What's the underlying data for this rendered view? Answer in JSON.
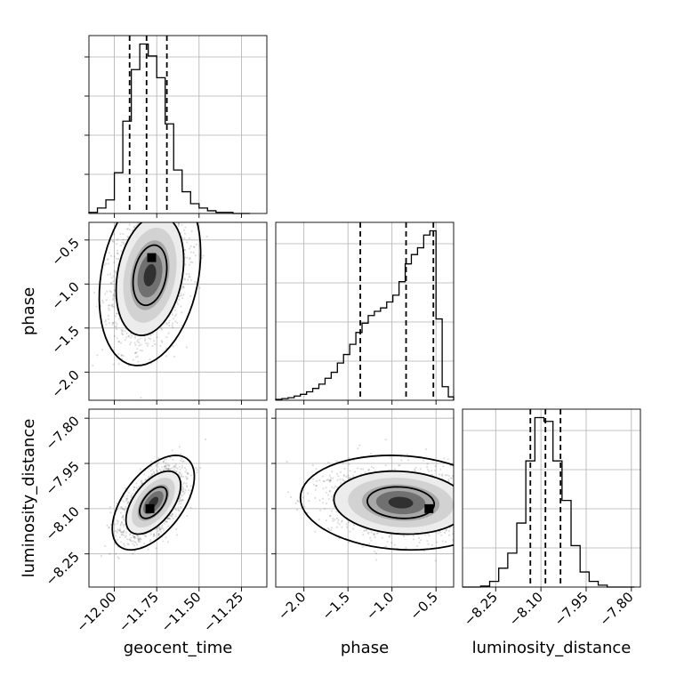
{
  "chart_data": {
    "type": "corner",
    "parameters": [
      "geocent_time",
      "phase",
      "luminosity_distance"
    ],
    "grid": true,
    "axes": {
      "geocent_time": {
        "range": [
          -12.15,
          -11.1
        ],
        "ticks": [
          -12.0,
          -11.75,
          -11.5,
          -11.25
        ],
        "tick_labels": [
          "−12.00",
          "−11.75",
          "−11.50",
          "−11.25"
        ]
      },
      "phase": {
        "range": [
          -2.32,
          -0.3
        ],
        "ticks": [
          -2.0,
          -1.5,
          -1.0,
          -0.5
        ],
        "tick_labels": [
          "−2.0",
          "−1.5",
          "−1.0",
          "−0.5"
        ]
      },
      "luminosity_distance": {
        "range": [
          -8.36,
          -7.77
        ],
        "ticks": [
          -8.25,
          -8.1,
          -7.95,
          -7.8
        ],
        "tick_labels": [
          "−8.25",
          "−8.10",
          "−7.95",
          "−7.80"
        ]
      }
    },
    "marginals": {
      "geocent_time": {
        "bin_edges": [
          -12.15,
          -12.1,
          -12.05,
          -12.0,
          -11.95,
          -11.9,
          -11.85,
          -11.8,
          -11.75,
          -11.7,
          -11.65,
          -11.6,
          -11.55,
          -11.5,
          -11.45,
          -11.4,
          -11.35,
          -11.3,
          -11.25,
          -11.2
        ],
        "counts": [
          0.2,
          1.0,
          2.5,
          7.5,
          17.0,
          26.5,
          31.2,
          29.0,
          25.0,
          16.5,
          8.0,
          4.0,
          1.8,
          1.0,
          0.5,
          0.2,
          0.2,
          0.0,
          0.0
        ],
        "quantiles": [
          -11.91,
          -11.81,
          -11.69
        ]
      },
      "phase": {
        "bin_edges": [
          -2.32,
          -2.25,
          -2.18,
          -2.11,
          -2.04,
          -1.97,
          -1.9,
          -1.83,
          -1.76,
          -1.69,
          -1.62,
          -1.55,
          -1.48,
          -1.41,
          -1.34,
          -1.27,
          -1.2,
          -1.13,
          -1.06,
          -0.99,
          -0.92,
          -0.85,
          -0.78,
          -0.71,
          -0.64,
          -0.57,
          -0.5,
          -0.43,
          -0.36,
          -0.3
        ],
        "counts": [
          0.5,
          1.0,
          1.5,
          2.5,
          3.5,
          5.0,
          7.0,
          9.5,
          13.0,
          16.5,
          22.0,
          27.0,
          33.0,
          40.0,
          45.5,
          50.0,
          52.5,
          54.5,
          58.0,
          62.0,
          70.0,
          80.5,
          86.0,
          90.0,
          97.5,
          100.0,
          48.0,
          8.0,
          2.0
        ],
        "quantiles": [
          -1.36,
          -0.84,
          -0.53
        ]
      },
      "luminosity_distance": {
        "bin_edges": [
          -8.36,
          -8.33,
          -8.3,
          -8.27,
          -8.24,
          -8.21,
          -8.18,
          -8.15,
          -8.12,
          -8.09,
          -8.06,
          -8.03,
          -8.0,
          -7.97,
          -7.94,
          -7.91,
          -7.88,
          -7.85,
          -7.82,
          -7.79
        ],
        "counts": [
          0.0,
          0.0,
          0.5,
          3.0,
          10.0,
          18.0,
          34.0,
          67.0,
          90.0,
          88.0,
          67.0,
          46.0,
          22.0,
          8.0,
          3.0,
          1.0,
          0.0,
          0.0,
          0.0
        ],
        "quantiles": [
          -8.135,
          -8.085,
          -8.035
        ]
      }
    },
    "joint": {
      "phase_vs_geocent_time": {
        "mean": [
          -11.79,
          -0.9
        ],
        "std": [
          0.105,
          0.36
        ],
        "corr": 0.25,
        "contour_levels_sigma": [
          1,
          2,
          3
        ],
        "mode": [
          -11.78,
          -0.7
        ]
      },
      "luminosity_distance_vs_geocent_time": {
        "mean": [
          -11.77,
          -8.08
        ],
        "std": [
          0.085,
          0.055
        ],
        "corr": 0.55,
        "contour_levels_sigma": [
          1,
          2,
          3
        ],
        "mode": [
          -11.79,
          -8.1
        ]
      },
      "luminosity_distance_vs_phase": {
        "mean": [
          -0.9,
          -8.08
        ],
        "std": [
          0.4,
          0.055
        ],
        "corr": -0.1,
        "contour_levels_sigma": [
          1,
          2,
          3
        ],
        "mode": [
          -0.58,
          -8.1
        ]
      }
    }
  }
}
